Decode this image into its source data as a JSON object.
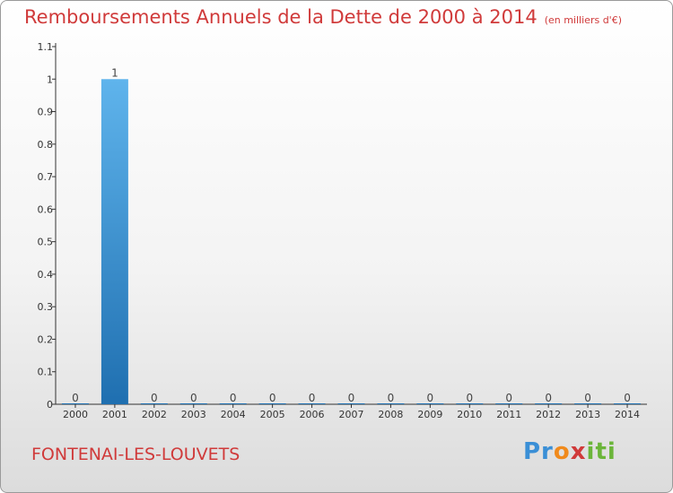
{
  "header": {
    "title": "Remboursements Annuels de la Dette de 2000 à 2014",
    "units": "(en milliers d'€)"
  },
  "footer": {
    "commune": "FONTENAI-LES-LOUVETS",
    "logo": "Proxiti"
  },
  "colors": {
    "title": "#d03a3a",
    "bar_top": "#5fb4ec",
    "bar_bottom": "#1f6fb0"
  },
  "chart_data": {
    "type": "bar",
    "categories": [
      "2000",
      "2001",
      "2002",
      "2003",
      "2004",
      "2005",
      "2006",
      "2007",
      "2008",
      "2009",
      "2010",
      "2011",
      "2012",
      "2013",
      "2014"
    ],
    "values": [
      0,
      1,
      0,
      0,
      0,
      0,
      0,
      0,
      0,
      0,
      0,
      0,
      0,
      0,
      0
    ],
    "data_labels": [
      "0",
      "1",
      "0",
      "0",
      "0",
      "0",
      "0",
      "0",
      "0",
      "0",
      "0",
      "0",
      "0",
      "0",
      "0"
    ],
    "yticks": [
      "0",
      "0.1",
      "0.2",
      "0.3",
      "0.4",
      "0.5",
      "0.6",
      "0.7",
      "0.8",
      "0.9",
      "1",
      "1.1"
    ],
    "ylim": [
      0,
      1.1
    ],
    "xlabel": "",
    "ylabel": "",
    "grid": false,
    "legend": "none"
  }
}
